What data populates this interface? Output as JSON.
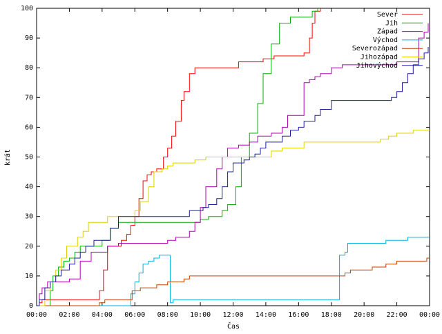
{
  "chart_data": {
    "type": "line",
    "title": "",
    "xlabel": "Čas",
    "ylabel": "krát",
    "xlim": [
      "00:00",
      "24:00"
    ],
    "ylim": [
      0,
      100
    ],
    "x_ticks": [
      "00:00",
      "02:00",
      "04:00",
      "06:00",
      "08:00",
      "10:00",
      "12:00",
      "14:00",
      "16:00",
      "18:00",
      "20:00",
      "22:00",
      "00:00"
    ],
    "y_ticks": [
      0,
      10,
      20,
      30,
      40,
      50,
      60,
      70,
      80,
      90,
      100
    ],
    "grid": false,
    "legend_position": "top-right",
    "step": true,
    "series": [
      {
        "name": "Sever",
        "color": "#ff0000",
        "x": [
          "00:00",
          "00:10",
          "00:20",
          "00:30",
          "00:40",
          "03:30",
          "03:50",
          "04:05",
          "04:20",
          "05:10",
          "05:30",
          "05:45",
          "06:00",
          "06:15",
          "06:30",
          "06:45",
          "07:00",
          "07:20",
          "07:45",
          "08:00",
          "08:15",
          "08:30",
          "08:50",
          "09:00",
          "09:20",
          "09:40",
          "12:20",
          "13:50",
          "14:30",
          "16:20",
          "16:40",
          "16:50",
          "17:00",
          "17:20"
        ],
        "y": [
          0,
          1,
          2,
          2,
          2,
          2,
          5,
          12,
          20,
          22,
          24,
          27,
          30,
          36,
          42,
          44,
          45,
          46,
          50,
          53,
          57,
          62,
          69,
          72,
          78,
          80,
          82,
          83,
          84,
          85,
          90,
          95,
          99,
          100
        ]
      },
      {
        "name": "Jih",
        "color": "#00b000",
        "x": [
          "00:00",
          "00:40",
          "00:50",
          "01:00",
          "01:20",
          "01:40",
          "02:00",
          "02:20",
          "02:40",
          "03:00",
          "04:00",
          "04:30",
          "05:00",
          "10:00",
          "10:30",
          "11:20",
          "11:40",
          "12:10",
          "12:30",
          "13:00",
          "13:30",
          "13:50",
          "14:20",
          "14:50",
          "15:30",
          "16:00",
          "16:20",
          "16:50",
          "17:10"
        ],
        "y": [
          0,
          0,
          5,
          10,
          13,
          15,
          16,
          18,
          20,
          20,
          22,
          26,
          28,
          29,
          30,
          32,
          34,
          40,
          50,
          58,
          68,
          78,
          88,
          95,
          97,
          97,
          97,
          99,
          100
        ]
      },
      {
        "name": "Západ",
        "color": "#b000b0",
        "x": [
          "00:00",
          "00:10",
          "00:20",
          "00:40",
          "02:00",
          "02:40",
          "03:20",
          "04:20",
          "05:00",
          "07:20",
          "08:00",
          "08:30",
          "09:20",
          "09:40",
          "10:00",
          "10:20",
          "11:00",
          "11:20",
          "11:40",
          "12:20",
          "13:00",
          "13:30",
          "14:20",
          "15:00",
          "15:20",
          "16:20",
          "16:40",
          "17:00",
          "17:20",
          "18:00",
          "18:40",
          "21:00",
          "22:00",
          "23:20",
          "23:40",
          "23:55"
        ],
        "y": [
          0,
          4,
          6,
          8,
          9,
          15,
          18,
          20,
          21,
          21,
          22,
          23,
          25,
          28,
          33,
          40,
          46,
          50,
          53,
          54,
          55,
          57,
          58,
          60,
          64,
          75,
          76,
          77,
          78,
          80,
          81,
          81,
          82,
          90,
          92,
          95
        ]
      },
      {
        "name": "Východ",
        "color": "#00b0e0",
        "x": [
          "00:00",
          "05:30",
          "05:45",
          "06:00",
          "06:15",
          "06:30",
          "06:50",
          "07:10",
          "07:30",
          "08:10",
          "08:20",
          "18:30",
          "18:50",
          "19:00",
          "21:00",
          "21:20",
          "22:40",
          "23:00",
          "24:00"
        ],
        "y": [
          0,
          0,
          4,
          8,
          11,
          14,
          15,
          16,
          17,
          1,
          2,
          17,
          18,
          21,
          21,
          22,
          23,
          23,
          23
        ]
      },
      {
        "name": "Severozápad",
        "color": "#c04000",
        "x": [
          "00:00",
          "03:30",
          "03:50",
          "04:10",
          "04:30",
          "05:10",
          "05:50",
          "06:20",
          "06:50",
          "07:20",
          "07:40",
          "08:00",
          "08:20",
          "09:00",
          "09:20",
          "09:40",
          "15:00",
          "17:30",
          "18:50",
          "19:10",
          "20:30",
          "21:20",
          "21:40",
          "22:00",
          "23:30",
          "23:50",
          "24:00"
        ],
        "y": [
          0,
          0,
          1,
          2,
          2,
          2,
          5,
          6,
          6,
          7,
          7,
          8,
          8,
          9,
          10,
          10,
          10,
          10,
          11,
          12,
          13,
          14,
          14,
          15,
          15,
          16,
          16
        ]
      },
      {
        "name": "Jihozápad",
        "color": "#e0d000",
        "x": [
          "00:00",
          "00:30",
          "00:50",
          "01:10",
          "01:30",
          "01:50",
          "02:30",
          "02:50",
          "03:10",
          "03:30",
          "04:00",
          "04:20",
          "05:40",
          "06:00",
          "06:20",
          "06:50",
          "07:10",
          "07:40",
          "08:00",
          "08:20",
          "09:00",
          "09:40",
          "10:20",
          "12:00",
          "12:40",
          "13:00",
          "14:20",
          "15:00",
          "16:00",
          "16:20",
          "20:30",
          "21:00",
          "21:30",
          "22:00",
          "23:00",
          "24:00"
        ],
        "y": [
          0,
          5,
          8,
          12,
          16,
          20,
          23,
          25,
          28,
          28,
          28,
          30,
          30,
          32,
          35,
          40,
          45,
          46,
          47,
          48,
          48,
          49,
          50,
          50,
          50,
          50,
          52,
          53,
          53,
          55,
          55,
          56,
          57,
          58,
          59,
          59
        ]
      },
      {
        "name": "Jihovýchod",
        "color": "#1c1c9c",
        "x": [
          "00:00",
          "00:10",
          "00:30",
          "00:50",
          "01:10",
          "01:30",
          "02:00",
          "02:20",
          "02:40",
          "03:00",
          "03:30",
          "04:00",
          "04:30",
          "05:00",
          "05:30",
          "06:00",
          "09:00",
          "09:20",
          "09:40",
          "10:10",
          "10:30",
          "11:00",
          "11:20",
          "11:40",
          "12:00",
          "12:40",
          "13:00",
          "13:20",
          "13:40",
          "14:00",
          "15:00",
          "15:30",
          "16:00",
          "16:20",
          "17:00",
          "17:20",
          "18:00",
          "21:20",
          "21:40",
          "22:00",
          "22:20",
          "22:40",
          "23:00",
          "23:20",
          "23:40",
          "23:55"
        ],
        "y": [
          0,
          2,
          6,
          8,
          10,
          12,
          14,
          16,
          18,
          20,
          22,
          22,
          26,
          30,
          30,
          30,
          30,
          32,
          32,
          33,
          34,
          36,
          40,
          45,
          48,
          49,
          50,
          51,
          53,
          55,
          57,
          59,
          60,
          62,
          64,
          66,
          69,
          69,
          70,
          72,
          75,
          78,
          81,
          83,
          85,
          87
        ]
      }
    ]
  }
}
